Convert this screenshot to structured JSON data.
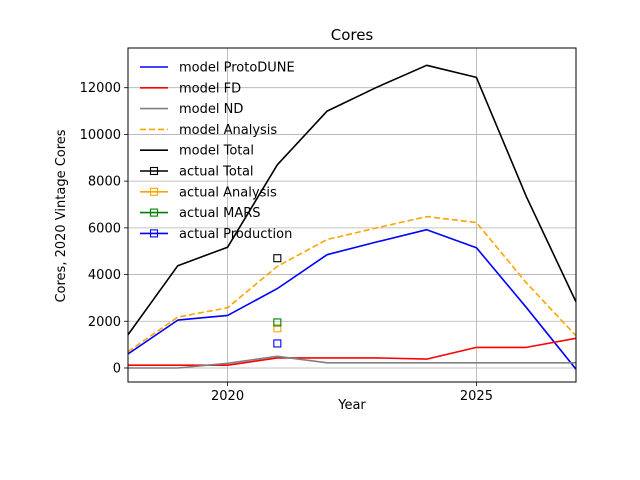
{
  "chart_data": {
    "type": "line",
    "title": "Cores",
    "xlabel": "Year",
    "ylabel": "Cores, 2020 Vintage Cores",
    "xlim": [
      2018,
      2027
    ],
    "ylim": [
      -600,
      13700
    ],
    "xticks": [
      2020,
      2025
    ],
    "yticks": [
      0,
      2000,
      4000,
      6000,
      8000,
      10000,
      12000
    ],
    "grid": true,
    "legend_position": "upper-left",
    "x": [
      2018,
      2019,
      2020,
      2021,
      2022,
      2023,
      2024,
      2025,
      2026,
      2027
    ],
    "series": [
      {
        "name": "model ProtoDUNE",
        "color": "#0000ff",
        "style": "solid",
        "values": [
          600,
          2050,
          2250,
          3400,
          4850,
          5400,
          5920,
          5150,
          2600,
          -50
        ]
      },
      {
        "name": "model FD",
        "color": "#ff0000",
        "style": "solid",
        "values": [
          120,
          120,
          120,
          430,
          430,
          430,
          380,
          880,
          880,
          1270
        ]
      },
      {
        "name": "model ND",
        "color": "#808080",
        "style": "solid",
        "values": [
          0,
          0,
          200,
          500,
          220,
          220,
          220,
          220,
          220,
          220
        ]
      },
      {
        "name": "model Analysis",
        "color": "#ffa500",
        "style": "dashed",
        "values": [
          700,
          2180,
          2580,
          4350,
          5500,
          6000,
          6480,
          6230,
          3650,
          1380
        ]
      },
      {
        "name": "model Total",
        "color": "#000000",
        "style": "solid",
        "values": [
          1420,
          4380,
          5170,
          8700,
          11000,
          12020,
          12960,
          12440,
          7350,
          2830
        ]
      }
    ],
    "points": [
      {
        "name": "actual Total",
        "color": "#000000",
        "x": 2021,
        "y": 4700
      },
      {
        "name": "actual Analysis",
        "color": "#ffa500",
        "x": 2021,
        "y": 1700
      },
      {
        "name": "actual MARS",
        "color": "#008000",
        "x": 2021,
        "y": 1950
      },
      {
        "name": "actual Production",
        "color": "#0000ff",
        "x": 2021,
        "y": 1050
      }
    ]
  }
}
